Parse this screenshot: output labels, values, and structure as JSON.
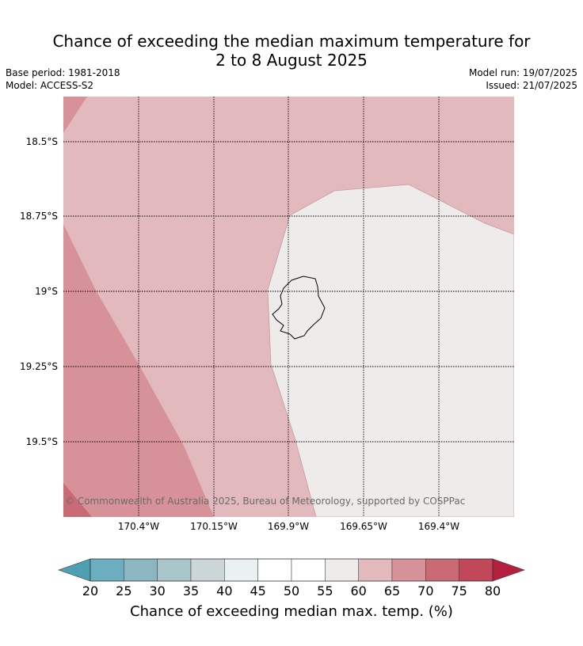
{
  "header": {
    "title_line1": "Chance of exceeding the median maximum temperature for",
    "title_line2": "2 to 8 August 2025",
    "base_period": "Base period: 1981-2018",
    "model": "Model: ACCESS-S2",
    "model_run": "Model run: 19/07/2025",
    "issued": "Issued: 21/07/2025"
  },
  "map": {
    "region": "Niue",
    "latitude_labels": [
      "18.5°S",
      "18.75°S",
      "19°S",
      "19.25°S",
      "19.5°S"
    ],
    "longitude_labels": [
      "170.4°W",
      "170.15°W",
      "169.9°W",
      "169.65°W",
      "169.4°W"
    ],
    "copyright": "© Commonwealth of Australia 2025, Bureau of Meteorology, supported by COSPPac",
    "colors": {
      "band_55_60": "#eeecea",
      "band_60_65": "#e2b9bd",
      "band_65_70": "#d69298",
      "band_70_75": "#ca6a74",
      "grid": "#000000",
      "coastline": "#000000"
    }
  },
  "colorbar": {
    "label": "Chance of exceeding median max. temp. (%)",
    "ticks": [
      "20",
      "25",
      "30",
      "35",
      "40",
      "45",
      "50",
      "55",
      "60",
      "65",
      "70",
      "75",
      "80"
    ],
    "under_color": "#4f9fb2",
    "over_color": "#b5203f",
    "colors": [
      "#6baebf",
      "#8bb6c2",
      "#a8c6ca",
      "#ccd6d9",
      "#eaf1f1",
      "#ffffff",
      "#ffffff",
      "#eeecea",
      "#e2b9bd",
      "#d69298",
      "#ca6a74",
      "#c04858"
    ]
  }
}
